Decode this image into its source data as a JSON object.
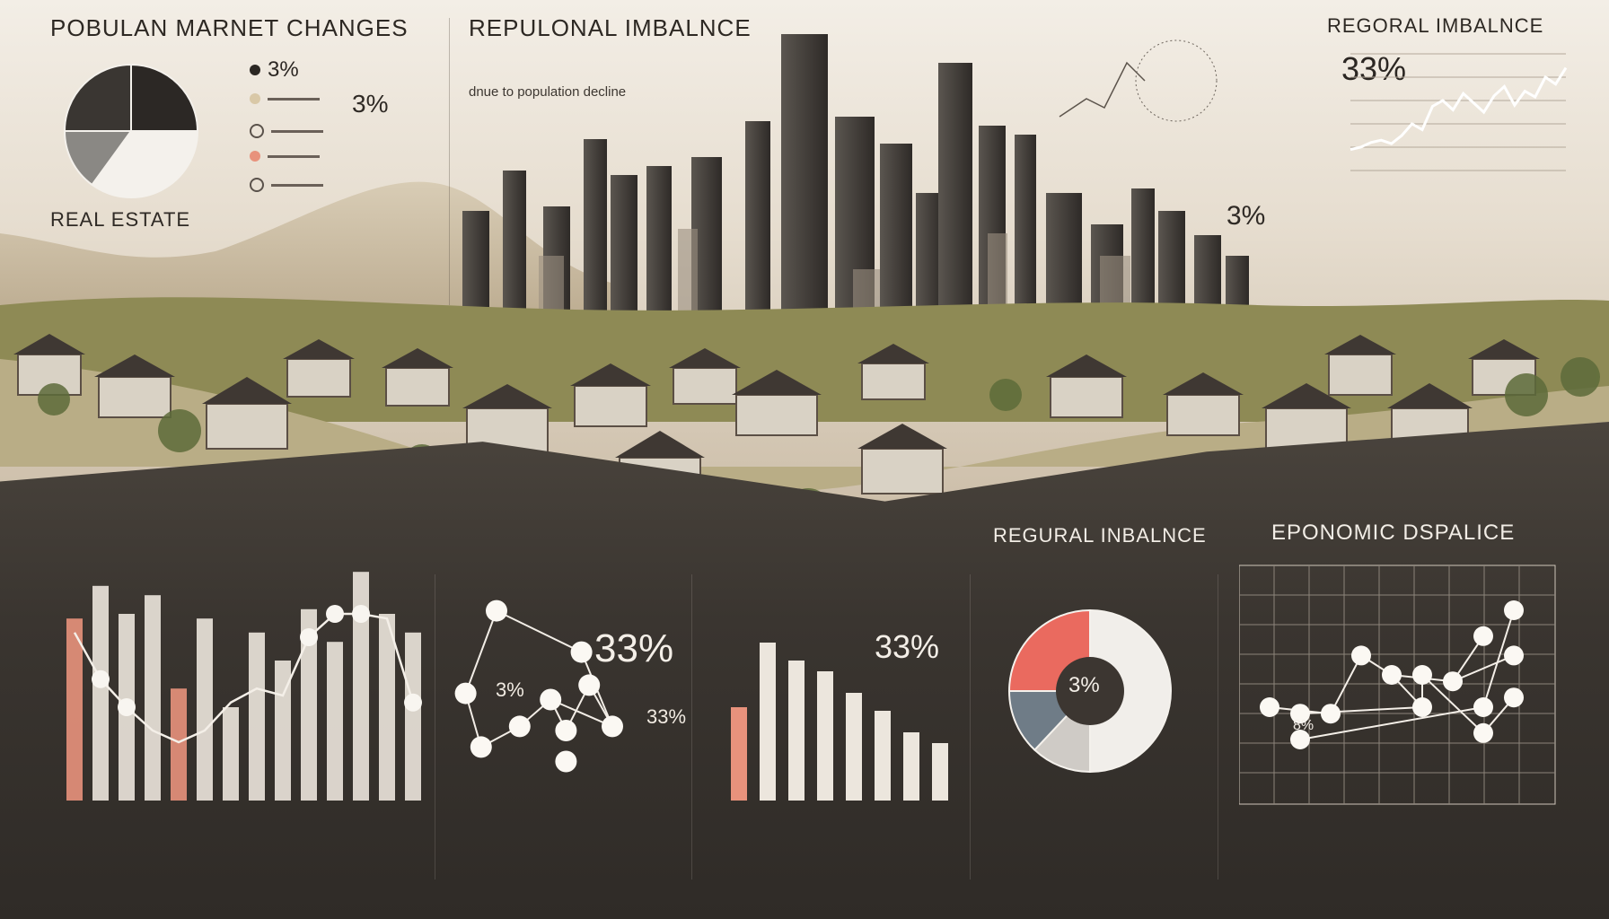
{
  "header": {
    "left_title": "POBULAN MARNET CHANGES",
    "mid_title": "REPULONAL IMBALNCE",
    "right_title": "REGORAL IMBALNCE",
    "real_estate_label": "REAL ESTATE",
    "mid_subtitle_line": "dnue to population decline"
  },
  "top_legend": {
    "pct_a": "3%",
    "pct_b": "3%"
  },
  "city_pct": "3%",
  "top_right": {
    "pct": "33%"
  },
  "bottom": {
    "mid_title": "REGURAL INBALNCE",
    "right_title": "EPONOMIC DSPALICE",
    "panel2_pct": "33%",
    "panel2_small_pct": "3%",
    "panel2_lower_pct": "33%",
    "panel3_pct": "33%",
    "donut_center_pct": "3%",
    "scatter_pct": "8%"
  },
  "colors": {
    "salmon": "#e8927c",
    "cream": "#f2ede6",
    "grey": "#8b8884",
    "dark": "#3b3631",
    "red": "#ea6a5f",
    "slate": "#6f7c87"
  },
  "chart_data": [
    {
      "type": "pie",
      "slices": [
        {
          "value": 25,
          "color": "#2c2825"
        },
        {
          "value": 35,
          "color": "#f4f1ec"
        },
        {
          "value": 15,
          "color": "#8a8884"
        },
        {
          "value": 25,
          "color": "#3a3632"
        }
      ]
    },
    {
      "type": "line",
      "values": [
        18,
        20,
        24,
        26,
        23,
        30,
        40,
        35,
        55,
        60,
        52,
        66,
        58,
        50,
        64,
        72,
        56,
        68,
        63,
        80,
        74,
        88
      ]
    },
    {
      "type": "bar",
      "values": [
        78,
        92,
        80,
        88,
        48,
        78,
        40,
        72,
        60,
        82,
        68,
        98,
        80,
        72
      ],
      "highlight_indices": [
        0,
        4
      ],
      "line_values": [
        72,
        52,
        40,
        30,
        25,
        30,
        42,
        48,
        45,
        70,
        80,
        80,
        78,
        42
      ]
    },
    {
      "type": "scatter",
      "points": [
        [
          10,
          78
        ],
        [
          2,
          38
        ],
        [
          6,
          12
        ],
        [
          16,
          22
        ],
        [
          24,
          35
        ],
        [
          28,
          20
        ],
        [
          34,
          42
        ],
        [
          28,
          5
        ],
        [
          40,
          22
        ],
        [
          32,
          58
        ]
      ]
    },
    {
      "type": "bar",
      "values": [
        52,
        88,
        78,
        72,
        60,
        50,
        38,
        32
      ],
      "highlight_indices": [
        0
      ]
    },
    {
      "type": "pie",
      "slices": [
        {
          "value": 50,
          "color": "#f1eeea"
        },
        {
          "value": 12,
          "color": "#cfcbc6"
        },
        {
          "value": 13,
          "color": "#6f7c87"
        },
        {
          "value": 25,
          "color": "#ea6a5f"
        }
      ]
    },
    {
      "type": "scatter",
      "points": [
        [
          1,
          50
        ],
        [
          2,
          48
        ],
        [
          2,
          40
        ],
        [
          3,
          48
        ],
        [
          4,
          66
        ],
        [
          5,
          60
        ],
        [
          6,
          50
        ],
        [
          6,
          60
        ],
        [
          7,
          58
        ],
        [
          8,
          72
        ],
        [
          8,
          50
        ],
        [
          8,
          42
        ],
        [
          9,
          80
        ],
        [
          9,
          66
        ],
        [
          9,
          53
        ]
      ]
    }
  ]
}
